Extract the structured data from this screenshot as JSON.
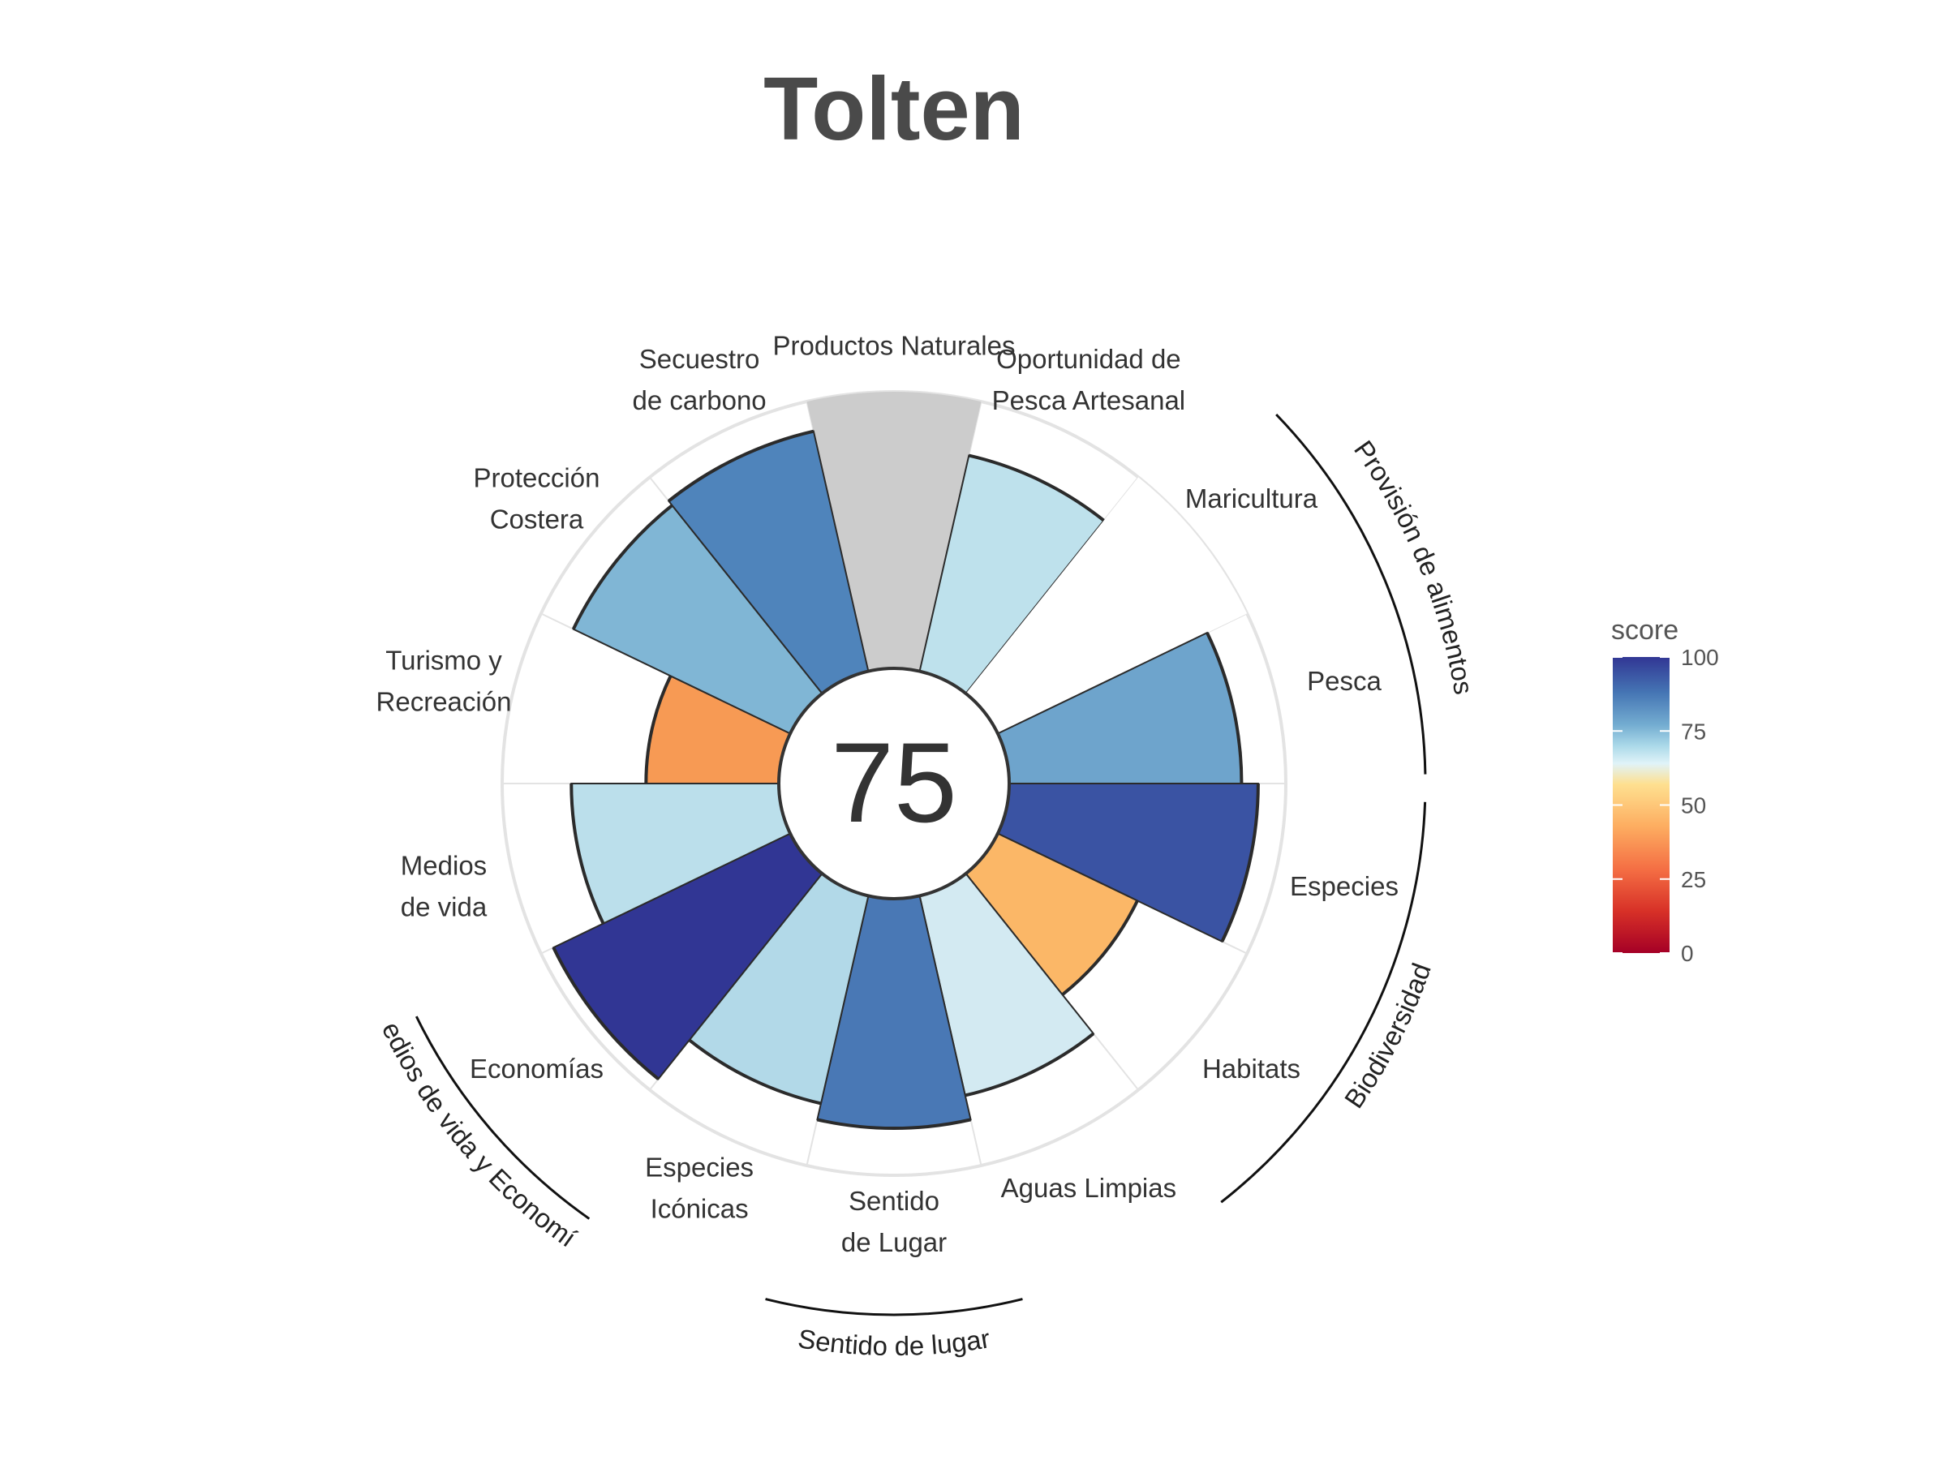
{
  "chart_data": {
    "type": "bar",
    "subtype": "polar-flower",
    "title": "Tolten",
    "center_score": "75",
    "categories": [
      {
        "label": [
          "Productos Naturales"
        ],
        "value": null,
        "color": "#cccccc"
      },
      {
        "label": [
          "Oportunidad de",
          "Pesca Artesanal"
        ],
        "value": 80,
        "color": "#bee1ec"
      },
      {
        "label": [
          "Maricultura"
        ],
        "value": null,
        "color": "#ffffff"
      },
      {
        "label": [
          "Pesca"
        ],
        "value": 84,
        "color": "#6ea4cc"
      },
      {
        "label": [
          "Especies"
        ],
        "value": 90,
        "color": "#3a53a3"
      },
      {
        "label": [
          "Habitats"
        ],
        "value": 56,
        "color": "#fbb767"
      },
      {
        "label": [
          "Aguas Limpias"
        ],
        "value": 74,
        "color": "#d3eaf2"
      },
      {
        "label": [
          "Sentido",
          "de Lugar"
        ],
        "value": 83,
        "color": "#4978b5"
      },
      {
        "label": [
          "Especies",
          "Icónicas"
        ],
        "value": 77,
        "color": "#b2d9e8"
      },
      {
        "label": [
          "Economías"
        ],
        "value": 95,
        "color": "#313694"
      },
      {
        "label": [
          "Medios",
          "de vida"
        ],
        "value": 75,
        "color": "#bbdfeb"
      },
      {
        "label": [
          "Turismo y",
          "Recreación"
        ],
        "value": 48,
        "color": "#f79a54"
      },
      {
        "label": [
          "Protección",
          "Costera"
        ],
        "value": 87,
        "color": "#80b6d5"
      },
      {
        "label": [
          "Secuestro",
          "de carbono"
        ],
        "value": 89,
        "color": "#4f84bb"
      }
    ],
    "groups": [
      {
        "name": "Provisión de alimentos"
      },
      {
        "name": "Biodiversidad"
      },
      {
        "name": "Sentido de lugar"
      },
      {
        "name": "Medios de vida y Economías"
      }
    ],
    "ylim": [
      0,
      100
    ],
    "legend": {
      "title": "score",
      "ticks": [
        "100",
        "75",
        "50",
        "25",
        "0"
      ],
      "placement": "right",
      "colors": [
        "#313694",
        "#4575b4",
        "#74add1",
        "#abd9e9",
        "#e0f3f8",
        "#fee090",
        "#fdae61",
        "#f46d43",
        "#d73027",
        "#a50026"
      ]
    }
  }
}
